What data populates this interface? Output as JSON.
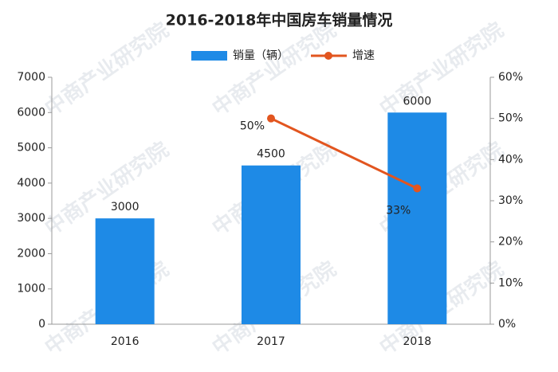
{
  "chart_data": {
    "type": "bar",
    "title": "2016-2018年中国房车销量情况",
    "watermark": "中商产业研究院",
    "categories": [
      "2016",
      "2017",
      "2018"
    ],
    "series": [
      {
        "name": "销量（辆）",
        "type": "bar",
        "color": "#1e8ae6",
        "values": [
          3000,
          4500,
          6000
        ]
      },
      {
        "name": "增速",
        "type": "line",
        "axis": "y2",
        "color": "#e2551f",
        "values": [
          null,
          50,
          33
        ],
        "value_labels": [
          null,
          "50%",
          "33%"
        ]
      }
    ],
    "ylim": [
      0,
      7000
    ],
    "yticks": [
      0,
      1000,
      2000,
      3000,
      4000,
      5000,
      6000,
      7000
    ],
    "y2lim": [
      0,
      60
    ],
    "y2ticks": [
      {
        "value": 0,
        "label": "0%"
      },
      {
        "value": 10,
        "label": "10%"
      },
      {
        "value": 20,
        "label": "20%"
      },
      {
        "value": 30,
        "label": "30%"
      },
      {
        "value": 40,
        "label": "40%"
      },
      {
        "value": 50,
        "label": "50%"
      },
      {
        "value": 60,
        "label": "60%"
      }
    ],
    "legend": "top"
  }
}
